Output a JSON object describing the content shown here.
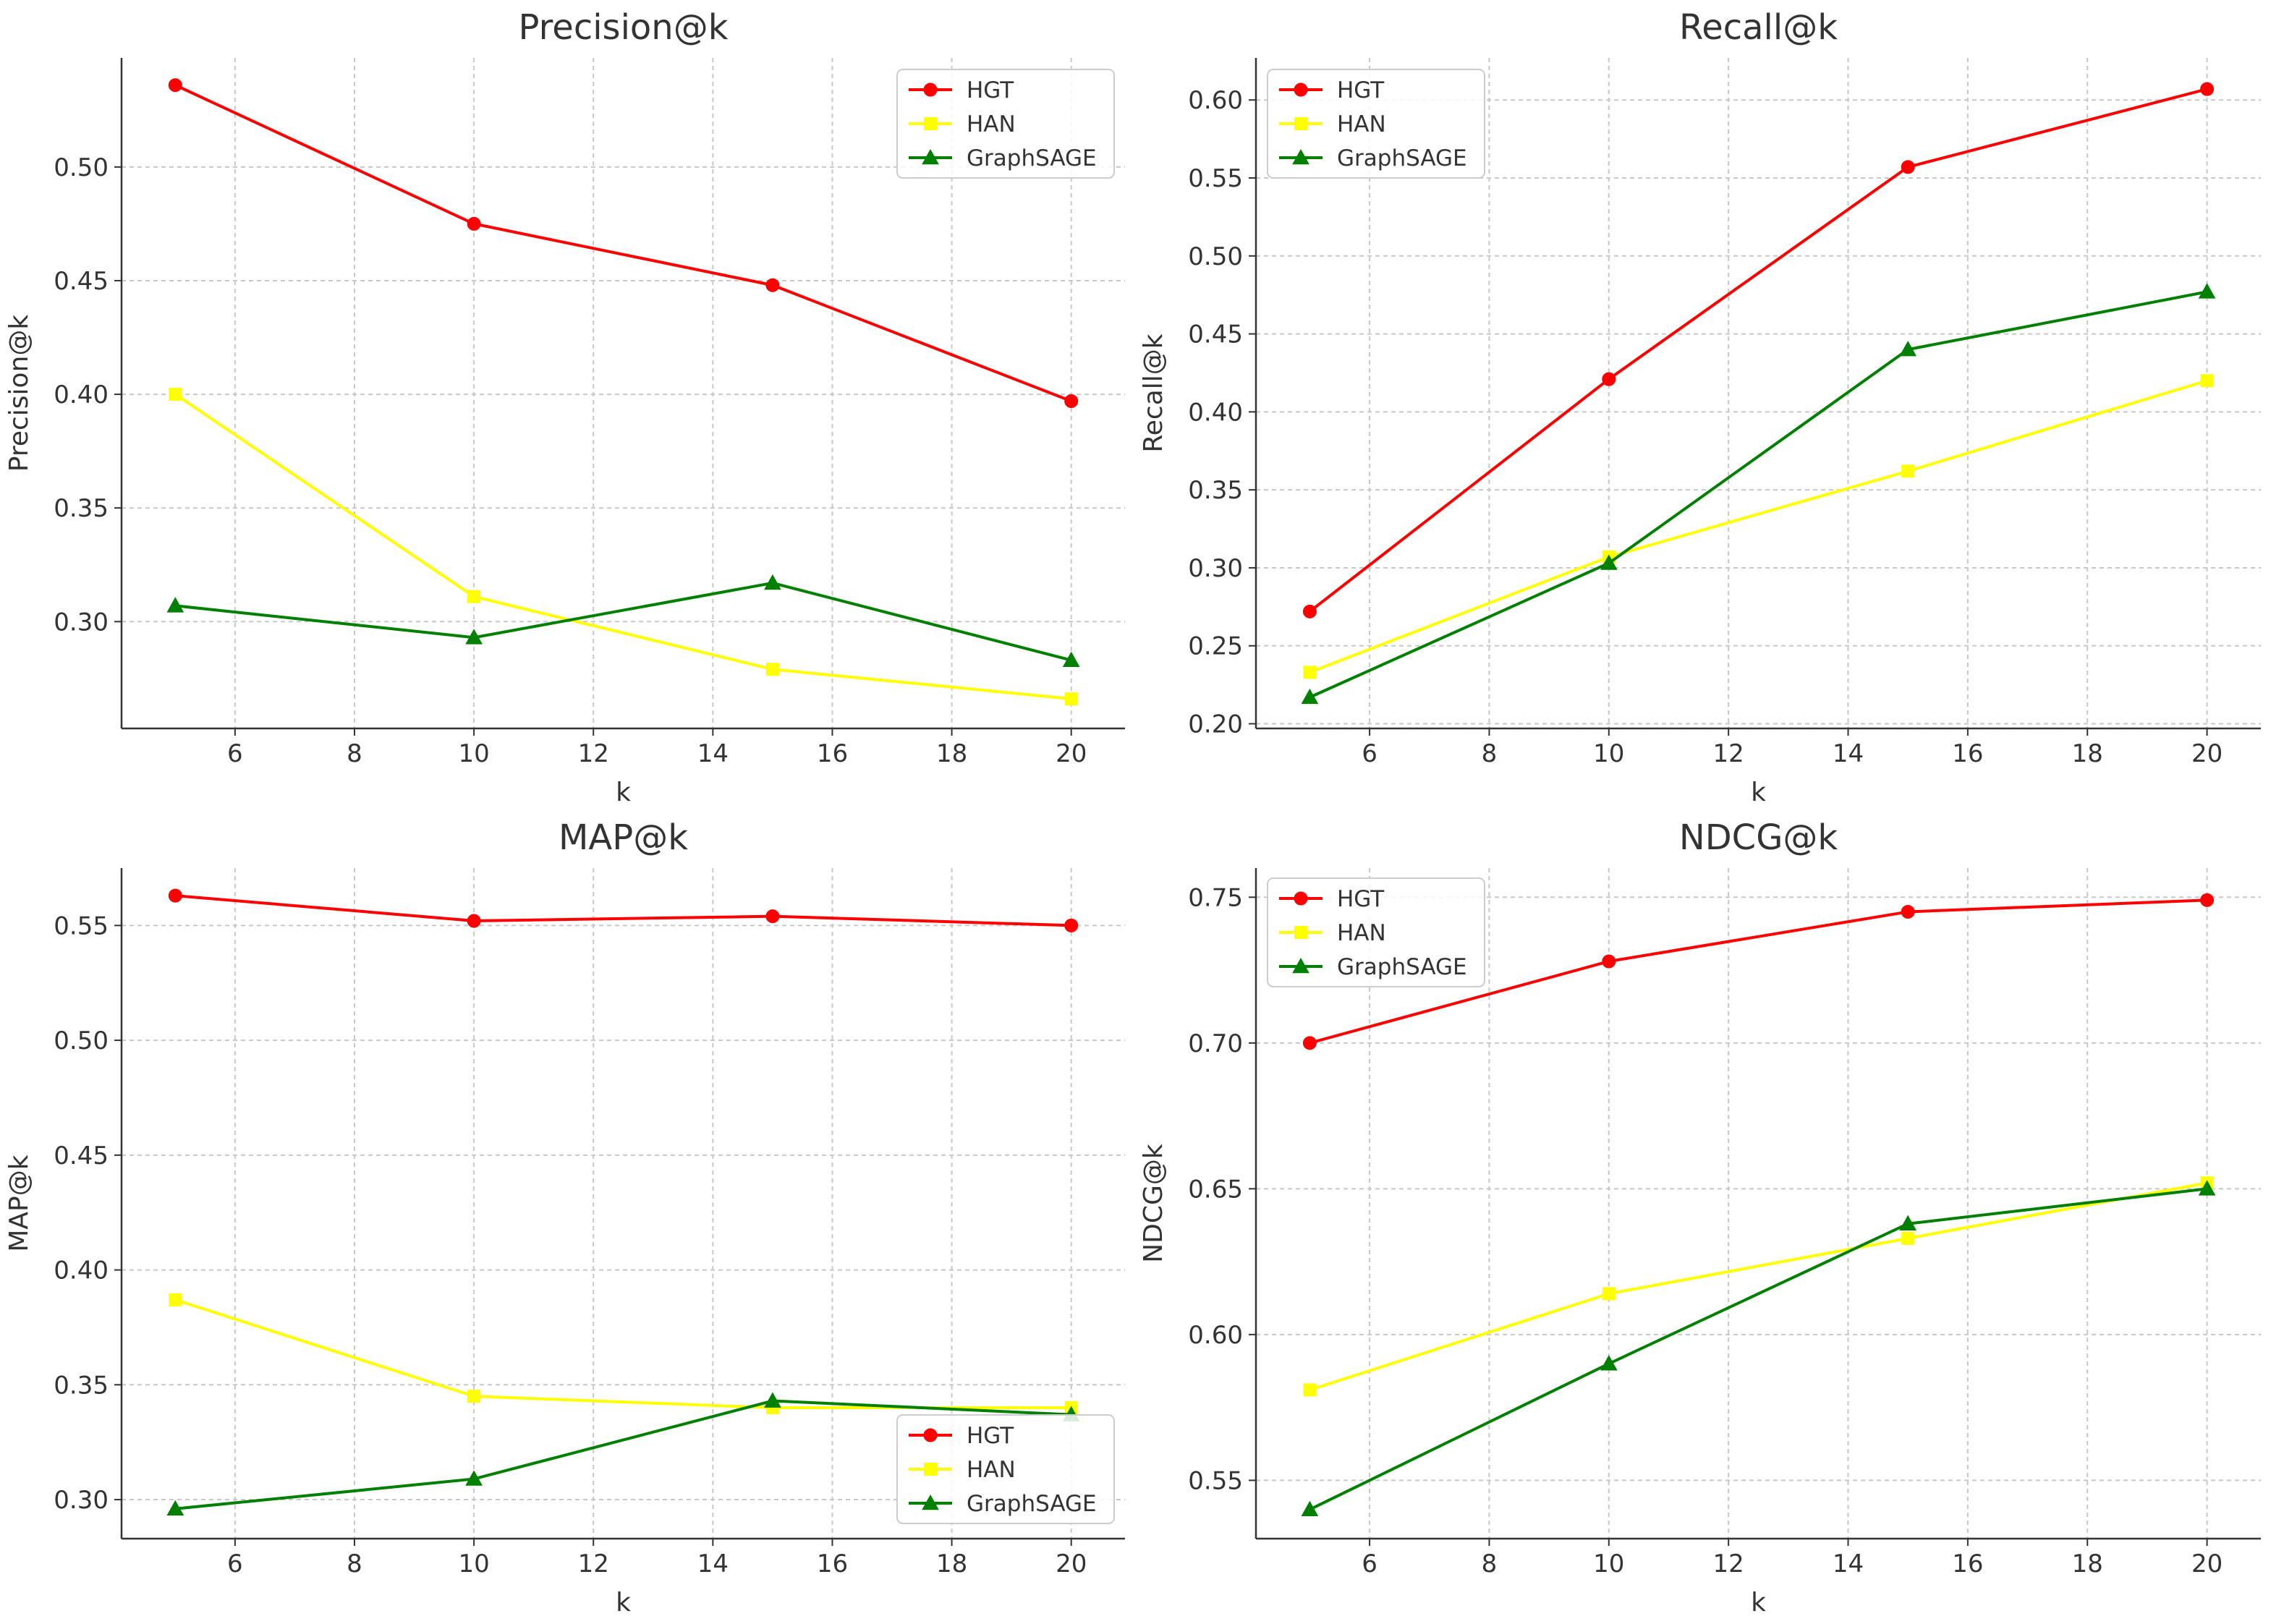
{
  "chart_data": [
    {
      "type": "line",
      "title": "Precision@k",
      "xlabel": "k",
      "ylabel": "Precision@k",
      "xlim": [
        4.1,
        20.9
      ],
      "ylim": [
        0.253,
        0.548
      ],
      "xticks": [
        6,
        8,
        10,
        12,
        14,
        16,
        18,
        20
      ],
      "yticks": [
        0.3,
        0.35,
        0.4,
        0.45,
        0.5
      ],
      "ytick_labels": [
        "0.30",
        "0.35",
        "0.40",
        "0.45",
        "0.50"
      ],
      "grid": true,
      "legend_position": "top-right",
      "x": [
        5,
        10,
        15,
        20
      ],
      "series": [
        {
          "name": "HGT",
          "color": "#ff0000",
          "marker": "circle",
          "values": [
            0.536,
            0.475,
            0.448,
            0.397
          ]
        },
        {
          "name": "HAN",
          "color": "#ffff00",
          "marker": "square",
          "values": [
            0.4,
            0.311,
            0.279,
            0.266
          ]
        },
        {
          "name": "GraphSAGE",
          "color": "#008000",
          "marker": "triangle",
          "values": [
            0.307,
            0.293,
            0.317,
            0.283
          ]
        }
      ]
    },
    {
      "type": "line",
      "title": "Recall@k",
      "xlabel": "k",
      "ylabel": "Recall@k",
      "xlim": [
        4.1,
        20.9
      ],
      "ylim": [
        0.197,
        0.627
      ],
      "xticks": [
        6,
        8,
        10,
        12,
        14,
        16,
        18,
        20
      ],
      "yticks": [
        0.2,
        0.25,
        0.3,
        0.35,
        0.4,
        0.45,
        0.5,
        0.55,
        0.6
      ],
      "ytick_labels": [
        "0.20",
        "0.25",
        "0.30",
        "0.35",
        "0.40",
        "0.45",
        "0.50",
        "0.55",
        "0.60"
      ],
      "grid": true,
      "legend_position": "top-left",
      "x": [
        5,
        10,
        15,
        20
      ],
      "series": [
        {
          "name": "HGT",
          "color": "#ff0000",
          "marker": "circle",
          "values": [
            0.272,
            0.421,
            0.557,
            0.607
          ]
        },
        {
          "name": "HAN",
          "color": "#ffff00",
          "marker": "square",
          "values": [
            0.233,
            0.307,
            0.362,
            0.42
          ]
        },
        {
          "name": "GraphSAGE",
          "color": "#008000",
          "marker": "triangle",
          "values": [
            0.217,
            0.303,
            0.44,
            0.477
          ]
        }
      ]
    },
    {
      "type": "line",
      "title": "MAP@k",
      "xlabel": "k",
      "ylabel": "MAP@k",
      "xlim": [
        4.1,
        20.9
      ],
      "ylim": [
        0.283,
        0.575
      ],
      "xticks": [
        6,
        8,
        10,
        12,
        14,
        16,
        18,
        20
      ],
      "yticks": [
        0.3,
        0.35,
        0.4,
        0.45,
        0.5,
        0.55
      ],
      "ytick_labels": [
        "0.30",
        "0.35",
        "0.40",
        "0.45",
        "0.50",
        "0.55"
      ],
      "grid": true,
      "legend_position": "bottom-right",
      "x": [
        5,
        10,
        15,
        20
      ],
      "series": [
        {
          "name": "HGT",
          "color": "#ff0000",
          "marker": "circle",
          "values": [
            0.563,
            0.552,
            0.554,
            0.55
          ]
        },
        {
          "name": "HAN",
          "color": "#ffff00",
          "marker": "square",
          "values": [
            0.387,
            0.345,
            0.34,
            0.34
          ]
        },
        {
          "name": "GraphSAGE",
          "color": "#008000",
          "marker": "triangle",
          "values": [
            0.296,
            0.309,
            0.343,
            0.337
          ]
        }
      ]
    },
    {
      "type": "line",
      "title": "NDCG@k",
      "xlabel": "k",
      "ylabel": "NDCG@k",
      "xlim": [
        4.1,
        20.9
      ],
      "ylim": [
        0.53,
        0.76
      ],
      "xticks": [
        6,
        8,
        10,
        12,
        14,
        16,
        18,
        20
      ],
      "yticks": [
        0.55,
        0.6,
        0.65,
        0.7,
        0.75
      ],
      "ytick_labels": [
        "0.55",
        "0.60",
        "0.65",
        "0.70",
        "0.75"
      ],
      "grid": true,
      "legend_position": "top-left",
      "x": [
        5,
        10,
        15,
        20
      ],
      "series": [
        {
          "name": "HGT",
          "color": "#ff0000",
          "marker": "circle",
          "values": [
            0.7,
            0.728,
            0.745,
            0.749
          ]
        },
        {
          "name": "HAN",
          "color": "#ffff00",
          "marker": "square",
          "values": [
            0.581,
            0.614,
            0.633,
            0.652
          ]
        },
        {
          "name": "GraphSAGE",
          "color": "#008000",
          "marker": "triangle",
          "values": [
            0.54,
            0.59,
            0.638,
            0.65
          ]
        }
      ]
    }
  ]
}
